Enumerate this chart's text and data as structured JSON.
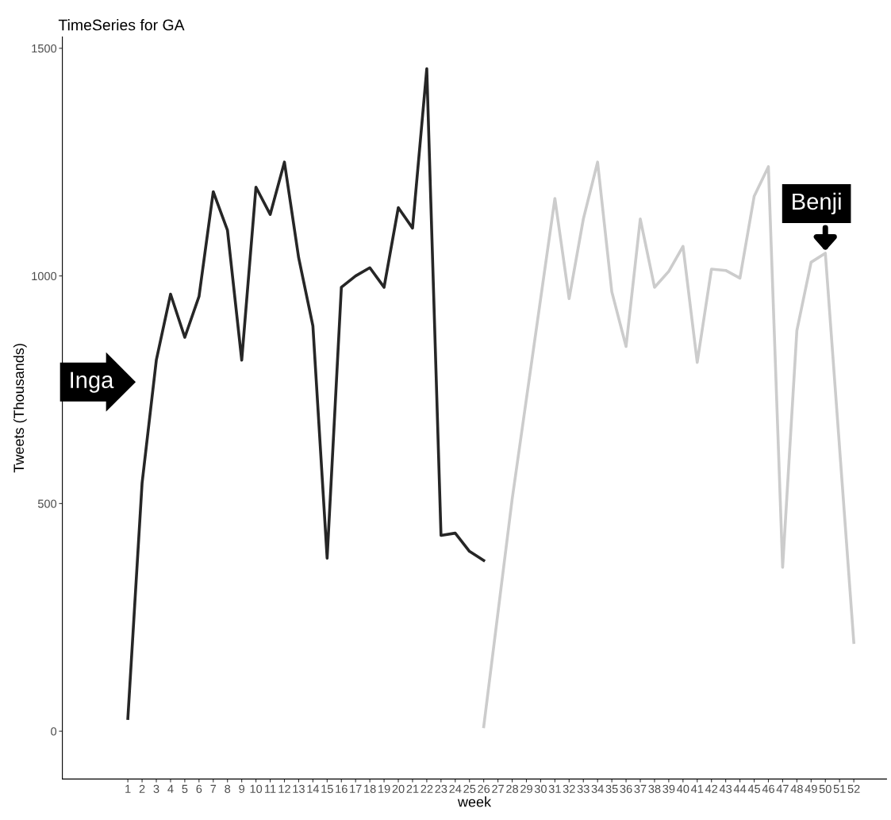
{
  "chart_data": {
    "type": "line",
    "title": "TimeSeries for GA",
    "xlabel": "week",
    "ylabel": "Tweets (Thousands)",
    "series": [
      {
        "color": "#262626",
        "x": [
          1,
          2,
          3,
          4,
          5,
          6,
          7,
          8,
          9,
          10,
          11,
          12,
          13,
          14,
          15,
          16,
          17,
          18,
          19,
          20,
          21,
          22,
          23,
          24,
          25,
          26
        ],
        "values": [
          28,
          545,
          815,
          960,
          865,
          955,
          1185,
          1100,
          815,
          1195,
          1135,
          1250,
          1040,
          890,
          380,
          975,
          1000,
          1018,
          975,
          1150,
          1105,
          1455,
          430,
          435,
          395,
          375
        ]
      },
      {
        "color": "#cccccc",
        "x": [
          26,
          28,
          31,
          32,
          33,
          34,
          35,
          36,
          37,
          38,
          39,
          40,
          41,
          42,
          43,
          44,
          45,
          46,
          47,
          48,
          49,
          50,
          52
        ],
        "values": [
          10,
          510,
          1170,
          950,
          1125,
          1250,
          965,
          845,
          1125,
          975,
          1010,
          1065,
          810,
          1015,
          1012,
          995,
          1175,
          1240,
          360,
          880,
          1030,
          1050,
          195
        ]
      }
    ],
    "annotations": [
      "Inga",
      {
        "text": "Benji",
        "x": 50,
        "y": 1050
      }
    ],
    "xlim": [
      -3.6,
      54.3
    ],
    "ylim": [
      -105,
      1525
    ],
    "xticks": [
      1,
      2,
      3,
      4,
      5,
      6,
      7,
      8,
      9,
      10,
      11,
      12,
      13,
      14,
      15,
      16,
      17,
      18,
      19,
      20,
      21,
      22,
      23,
      24,
      25,
      26,
      27,
      28,
      29,
      30,
      31,
      32,
      33,
      34,
      35,
      36,
      37,
      38,
      39,
      40,
      41,
      42,
      43,
      44,
      45,
      46,
      47,
      48,
      49,
      50,
      51,
      52
    ],
    "yticks": [
      0,
      500,
      1000,
      1500
    ],
    "grid": false,
    "legend": false,
    "marker": "none",
    "line_style": "solid"
  }
}
